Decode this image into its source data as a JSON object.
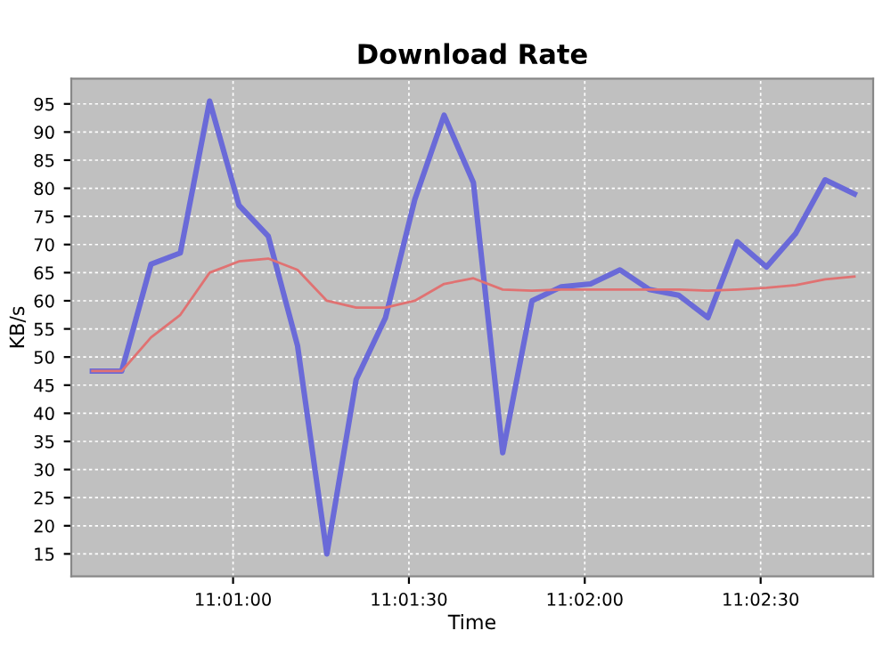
{
  "chart_data": {
    "type": "line",
    "title": "Download Rate",
    "xlabel": "Time",
    "ylabel": "KB/s",
    "x": [
      11.01,
      11.011389,
      11.012778,
      11.014167,
      11.015556,
      11.016944,
      11.018333,
      11.019722,
      11.021111,
      11.0225,
      11.023889,
      11.025278,
      11.026667,
      11.028056,
      11.029444,
      11.030833,
      11.032222,
      11.033611,
      11.035,
      11.036389,
      11.037778,
      11.039167,
      11.040556,
      11.041944,
      11.043333,
      11.044722,
      11.046111
    ],
    "series": [
      {
        "color": "#6a6ad8",
        "values": [
          47.5,
          47.5,
          66.5,
          68.5,
          95.5,
          77,
          71.5,
          52,
          15,
          46,
          57,
          78,
          93,
          81,
          33,
          60,
          62.5,
          63,
          65.5,
          62,
          61,
          57,
          70.5,
          66,
          72,
          81.5,
          79
        ]
      },
      {
        "color": "#e07272",
        "values": [
          47.5,
          47.5,
          53.5,
          57.5,
          65,
          67,
          67.5,
          65.5,
          60,
          58.8,
          58.8,
          60,
          63,
          64,
          62,
          61.8,
          62,
          62,
          62,
          62,
          62,
          61.8,
          62,
          62.3,
          62.8,
          63.8,
          64.3
        ]
      }
    ],
    "xlim": [
      11.009,
      11.047
    ],
    "ylim": [
      11,
      99.5
    ],
    "xticks": [
      {
        "value": 11.016667,
        "label": "11:01:00"
      },
      {
        "value": 11.025,
        "label": "11:01:30"
      },
      {
        "value": 11.033333,
        "label": "11:02:00"
      },
      {
        "value": 11.041667,
        "label": "11:02:30"
      }
    ],
    "yticks": [
      15,
      20,
      25,
      30,
      35,
      40,
      45,
      50,
      55,
      60,
      65,
      70,
      75,
      80,
      85,
      90,
      95
    ],
    "grid": true,
    "marker": "none",
    "line_style": "solid",
    "legend": false
  }
}
